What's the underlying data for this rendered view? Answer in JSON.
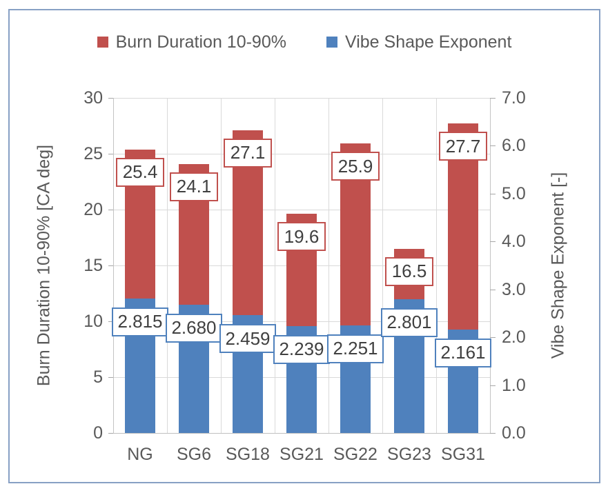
{
  "chart_data": {
    "type": "bar",
    "title": "",
    "categories": [
      "NG",
      "SG6",
      "SG18",
      "SG21",
      "SG22",
      "SG23",
      "SG31"
    ],
    "series": [
      {
        "name": "Burn Duration 10-90%",
        "key": "burn-duration",
        "axis": "left",
        "color": "#C0504D",
        "values": [
          25.4,
          24.1,
          27.1,
          19.6,
          25.9,
          16.5,
          27.7
        ],
        "labels": [
          "25.4",
          "24.1",
          "27.1",
          "19.6",
          "25.9",
          "16.5",
          "27.7"
        ]
      },
      {
        "name": "Vibe Shape Exponent",
        "key": "vibe-shape",
        "axis": "right",
        "color": "#4F81BD",
        "values": [
          2.815,
          2.68,
          2.459,
          2.239,
          2.251,
          2.801,
          2.161
        ],
        "labels": [
          "2.815",
          "2.680",
          "2.459",
          "2.239",
          "2.251",
          "2.801",
          "2.161"
        ]
      }
    ],
    "left_axis": {
      "title": "Burn Duration 10-90% [CA deg]",
      "min": 0,
      "max": 30,
      "step": 5,
      "tick_labels": [
        "0",
        "5",
        "10",
        "15",
        "20",
        "25",
        "30"
      ]
    },
    "right_axis": {
      "title": "Vibe Shape Exponent [-]",
      "min": 0,
      "max": 7,
      "step": 1,
      "tick_labels": [
        "0.0",
        "1.0",
        "2.0",
        "3.0",
        "4.0",
        "5.0",
        "6.0",
        "7.0"
      ]
    },
    "legend_position": "top",
    "grid": true,
    "style": {
      "gridline_color": "#D9D9D9",
      "axis_line_color": "#BFBFBF",
      "text_color": "#595959",
      "data_label_text_color": "#404040",
      "frame_border_color": "#87A0C4"
    }
  }
}
